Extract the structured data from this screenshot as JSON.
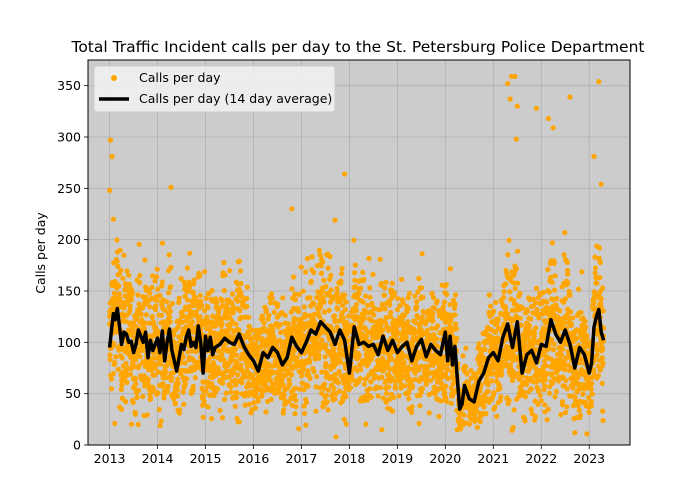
{
  "chart_data": {
    "type": "scatter",
    "title": "Total Traffic Incident calls per day to the St. Petersburg Police Department",
    "xlabel": "",
    "ylabel": "Calls per day",
    "xlim": [
      2012.55,
      2023.85
    ],
    "ylim": [
      0,
      375
    ],
    "x_ticks": [
      2013,
      2014,
      2015,
      2016,
      2017,
      2018,
      2019,
      2020,
      2021,
      2022,
      2023
    ],
    "x_tick_labels": [
      "2013",
      "2014",
      "2015",
      "2016",
      "2017",
      "2018",
      "2019",
      "2020",
      "2021",
      "2022",
      "2023"
    ],
    "y_ticks": [
      0,
      50,
      100,
      150,
      200,
      250,
      300,
      350
    ],
    "y_tick_labels": [
      "0",
      "50",
      "100",
      "150",
      "200",
      "250",
      "300",
      "350"
    ],
    "grid": true,
    "legend_position": "top-left",
    "colors": {
      "scatter": "#FFA500",
      "average": "#000000",
      "plot_background": "#CCCCCC",
      "grid": "#B0B0B0"
    },
    "series": [
      {
        "name": "Calls per day",
        "kind": "scatter",
        "description": "One point per day, Jan 2013 – Apr 2023 (dense cloud, typically 40–180 calls)",
        "notable_points": [
          {
            "x": 2013.02,
            "y": 297
          },
          {
            "x": 2013.05,
            "y": 281
          },
          {
            "x": 2013.0,
            "y": 248
          },
          {
            "x": 2014.28,
            "y": 251
          },
          {
            "x": 2016.8,
            "y": 230
          },
          {
            "x": 2017.9,
            "y": 264
          },
          {
            "x": 2017.7,
            "y": 219
          },
          {
            "x": 2017.72,
            "y": 8
          },
          {
            "x": 2020.25,
            "y": 15
          },
          {
            "x": 2021.3,
            "y": 352
          },
          {
            "x": 2021.38,
            "y": 359
          },
          {
            "x": 2021.45,
            "y": 359
          },
          {
            "x": 2021.35,
            "y": 337
          },
          {
            "x": 2021.5,
            "y": 330
          },
          {
            "x": 2021.48,
            "y": 298
          },
          {
            "x": 2021.9,
            "y": 328
          },
          {
            "x": 2022.15,
            "y": 318
          },
          {
            "x": 2022.25,
            "y": 309
          },
          {
            "x": 2022.6,
            "y": 339
          },
          {
            "x": 2022.7,
            "y": 12
          },
          {
            "x": 2023.1,
            "y": 281
          },
          {
            "x": 2023.2,
            "y": 354
          },
          {
            "x": 2023.25,
            "y": 254
          },
          {
            "x": 2023.28,
            "y": 33
          }
        ]
      },
      {
        "name": "Calls per day (14 day average)",
        "kind": "line",
        "x": [
          2013.0,
          2013.04,
          2013.08,
          2013.12,
          2013.16,
          2013.2,
          2013.25,
          2013.3,
          2013.35,
          2013.4,
          2013.45,
          2013.5,
          2013.55,
          2013.6,
          2013.65,
          2013.7,
          2013.75,
          2013.8,
          2013.85,
          2013.9,
          2013.95,
          2014.0,
          2014.05,
          2014.1,
          2014.15,
          2014.2,
          2014.25,
          2014.3,
          2014.35,
          2014.4,
          2014.45,
          2014.5,
          2014.55,
          2014.6,
          2014.65,
          2014.7,
          2014.75,
          2014.8,
          2014.85,
          2014.9,
          2014.95,
          2015.0,
          2015.05,
          2015.1,
          2015.15,
          2015.2,
          2015.3,
          2015.4,
          2015.5,
          2015.6,
          2015.7,
          2015.8,
          2015.9,
          2016.0,
          2016.1,
          2016.2,
          2016.3,
          2016.4,
          2016.5,
          2016.6,
          2016.7,
          2016.8,
          2016.9,
          2017.0,
          2017.1,
          2017.2,
          2017.3,
          2017.4,
          2017.5,
          2017.6,
          2017.7,
          2017.8,
          2017.9,
          2018.0,
          2018.1,
          2018.2,
          2018.3,
          2018.4,
          2018.5,
          2018.6,
          2018.7,
          2018.8,
          2018.9,
          2019.0,
          2019.1,
          2019.2,
          2019.3,
          2019.4,
          2019.5,
          2019.6,
          2019.7,
          2019.8,
          2019.9,
          2020.0,
          2020.05,
          2020.1,
          2020.15,
          2020.2,
          2020.25,
          2020.3,
          2020.35,
          2020.4,
          2020.5,
          2020.6,
          2020.7,
          2020.8,
          2020.9,
          2021.0,
          2021.1,
          2021.2,
          2021.3,
          2021.4,
          2021.5,
          2021.6,
          2021.7,
          2021.8,
          2021.9,
          2022.0,
          2022.1,
          2022.2,
          2022.3,
          2022.4,
          2022.5,
          2022.6,
          2022.7,
          2022.8,
          2022.9,
          2023.0,
          2023.05,
          2023.1,
          2023.15,
          2023.2,
          2023.25,
          2023.3
        ],
        "values": [
          95,
          112,
          128,
          122,
          133,
          118,
          98,
          110,
          108,
          100,
          101,
          90,
          98,
          112,
          106,
          100,
          110,
          85,
          102,
          92,
          98,
          104,
          90,
          111,
          82,
          100,
          113,
          92,
          82,
          72,
          85,
          98,
          93,
          105,
          112,
          96,
          100,
          95,
          116,
          100,
          70,
          106,
          92,
          105,
          88,
          95,
          98,
          104,
          100,
          98,
          108,
          96,
          88,
          82,
          72,
          90,
          85,
          95,
          90,
          78,
          85,
          105,
          96,
          90,
          100,
          112,
          108,
          120,
          115,
          110,
          98,
          112,
          102,
          70,
          115,
          98,
          100,
          96,
          98,
          88,
          106,
          92,
          102,
          90,
          96,
          100,
          82,
          96,
          103,
          86,
          98,
          92,
          88,
          110,
          82,
          106,
          78,
          96,
          65,
          35,
          40,
          58,
          45,
          42,
          62,
          70,
          85,
          90,
          82,
          105,
          118,
          95,
          120,
          70,
          88,
          92,
          80,
          98,
          96,
          122,
          108,
          100,
          112,
          98,
          75,
          95,
          88,
          70,
          80,
          115,
          125,
          132,
          110,
          102
        ]
      }
    ]
  }
}
